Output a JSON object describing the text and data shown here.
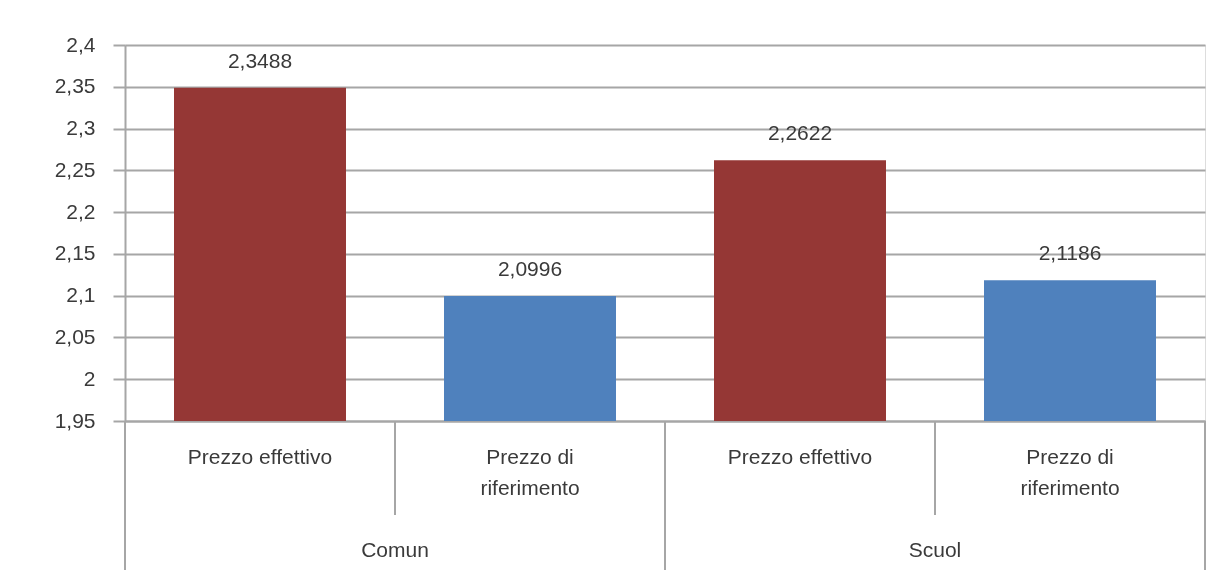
{
  "chart_data": {
    "type": "bar",
    "categories": [
      "Prezzo effettivo",
      "Prezzo di riferimento",
      "Prezzo effettivo",
      "Prezzo di riferimento"
    ],
    "values": [
      2.3488,
      2.0996,
      2.2622,
      2.1186
    ],
    "colors": [
      "#953735",
      "#4f81bd",
      "#953735",
      "#4f81bd"
    ],
    "value_labels": [
      "2,3488",
      "2,0996",
      "2,2622",
      "2,1186"
    ],
    "annotations": [
      "Comun",
      "Scuol"
    ],
    "ylim": [
      1.95,
      2.4
    ],
    "yticks": [
      {
        "value": 1.95,
        "label": "1,95"
      },
      2,
      {
        "value": 2.05,
        "label": "2,05"
      },
      {
        "value": 2.1,
        "label": "2,1"
      },
      {
        "value": 2.15,
        "label": "2,15"
      },
      {
        "value": 2.2,
        "label": "2,2"
      },
      {
        "value": 2.25,
        "label": "2,25"
      },
      {
        "value": 2.3,
        "label": "2,3"
      },
      {
        "value": 2.35,
        "label": "2,35"
      },
      {
        "value": 2.4,
        "label": "2,4"
      }
    ],
    "grid": "y"
  }
}
